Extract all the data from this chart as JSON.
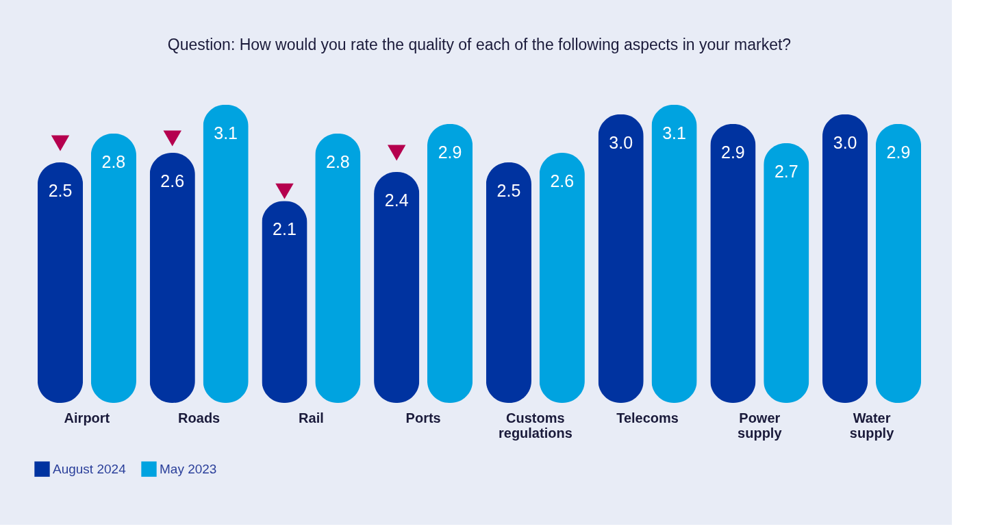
{
  "chart_data": {
    "type": "bar",
    "title": "Question: How would you rate the quality of each of the following aspects in your market?",
    "categories": [
      "Airport",
      "Roads",
      "Rail",
      "Ports",
      "Customs regulations",
      "Telecoms",
      "Power supply",
      "Water supply"
    ],
    "series": [
      {
        "name": "August 2024",
        "color": "#0033a0",
        "values": [
          2.5,
          2.6,
          2.1,
          2.4,
          2.5,
          3.0,
          2.9,
          3.0
        ],
        "value_labels": [
          "2.5",
          "2.6",
          "2.1",
          "2.4",
          "2.5",
          "3.0",
          "2.9",
          "3.0"
        ]
      },
      {
        "name": "May 2023",
        "color": "#00a3e0",
        "values": [
          2.8,
          3.1,
          2.8,
          2.9,
          2.6,
          3.1,
          2.7,
          2.9
        ],
        "value_labels": [
          "2.8",
          "3.1",
          "2.8",
          "2.9",
          "2.6",
          "3.1",
          "2.7",
          "2.9"
        ]
      },
      {
        "type": "scatter",
        "marker": "triangle",
        "color": "#b5004e",
        "x": [
          "Airport",
          "Roads",
          "Rail",
          "Ports"
        ],
        "values": [
          2.7,
          2.75,
          2.2,
          2.6
        ]
      }
    ],
    "legend": "bottom left",
    "grid": false
  }
}
